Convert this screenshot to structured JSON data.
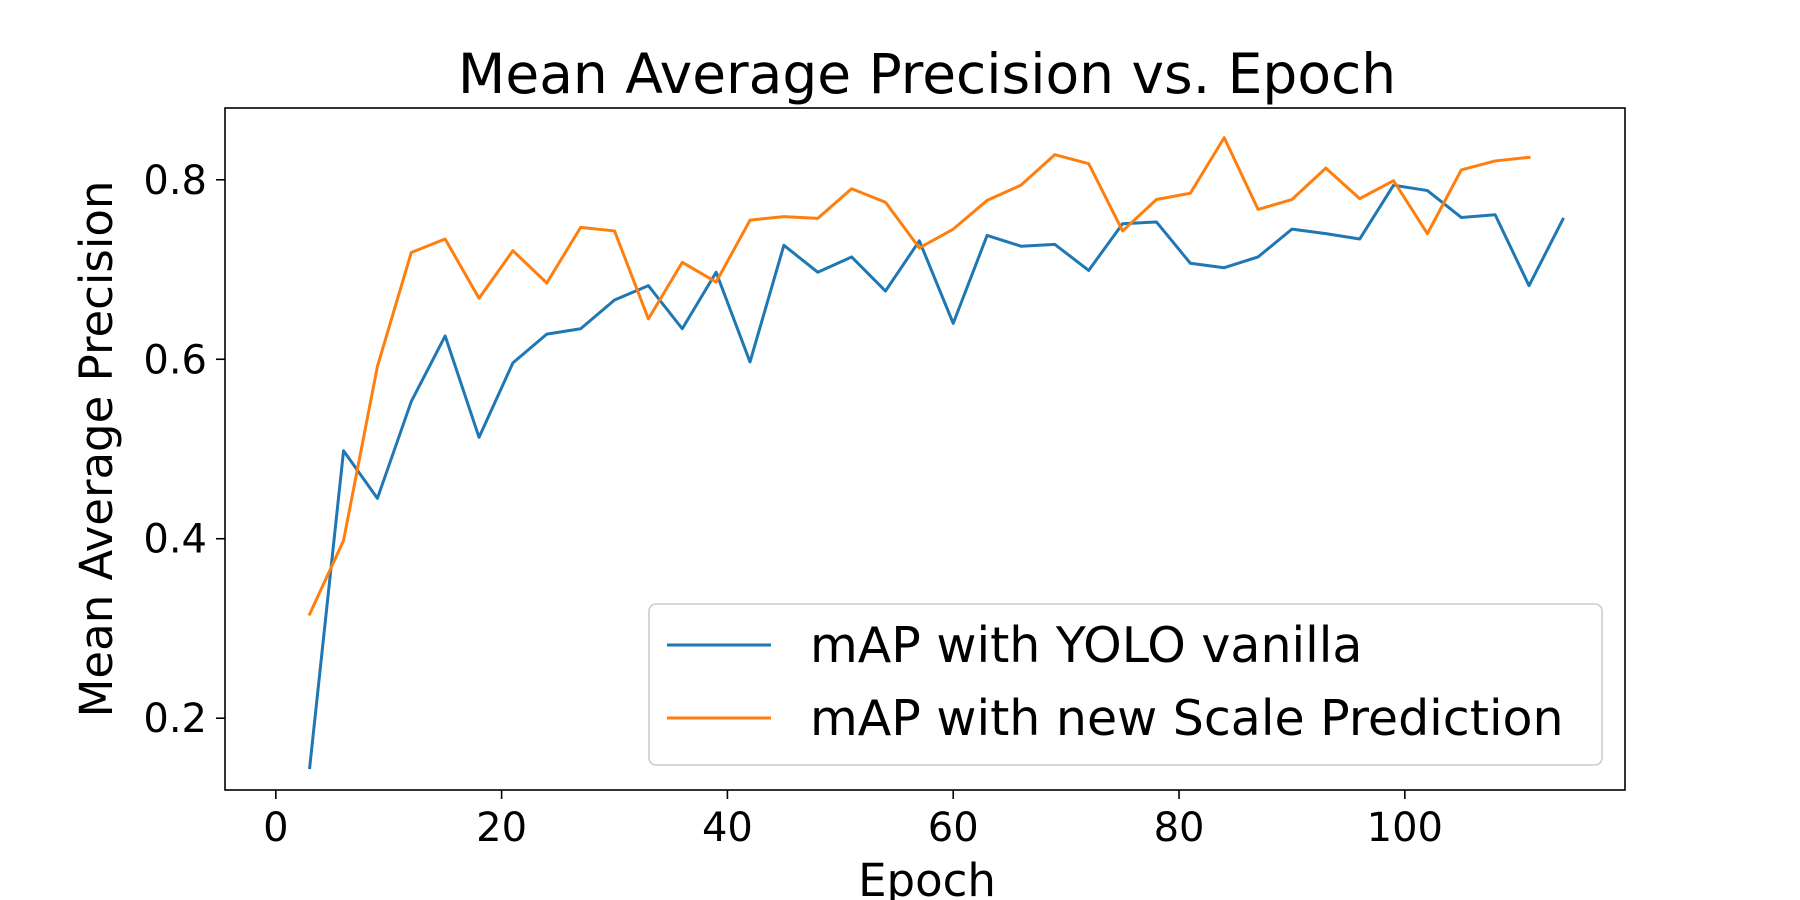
{
  "chart_data": {
    "type": "line",
    "title": "Mean Average Precision vs. Epoch",
    "xlabel": "Epoch",
    "ylabel": "Mean Average Precision",
    "xlim": [
      -4.5,
      119.5
    ],
    "ylim": [
      0.12,
      0.88
    ],
    "xticks": [
      0,
      20,
      40,
      60,
      80,
      100
    ],
    "yticks": [
      0.2,
      0.4,
      0.6,
      0.8
    ],
    "xtick_labels": [
      "0",
      "20",
      "40",
      "60",
      "80",
      "100"
    ],
    "ytick_labels": [
      "0.2",
      "0.4",
      "0.6",
      "0.8"
    ],
    "grid": false,
    "legend_position": "lower-right",
    "series": [
      {
        "name": "mAP with YOLO vanilla",
        "color": "#1f77b4",
        "x": [
          3,
          6,
          9,
          12,
          15,
          18,
          21,
          24,
          27,
          30,
          33,
          36,
          39,
          42,
          45,
          48,
          51,
          54,
          57,
          60,
          63,
          66,
          69,
          72,
          75,
          78,
          81,
          84,
          87,
          90,
          93,
          96,
          99,
          102,
          105,
          108,
          111,
          114
        ],
        "values": [
          0.145,
          0.498,
          0.445,
          0.553,
          0.626,
          0.513,
          0.596,
          0.628,
          0.634,
          0.666,
          0.682,
          0.634,
          0.697,
          0.597,
          0.727,
          0.697,
          0.714,
          0.676,
          0.732,
          0.64,
          0.738,
          0.726,
          0.728,
          0.699,
          0.751,
          0.753,
          0.707,
          0.702,
          0.714,
          0.745,
          0.74,
          0.734,
          0.794,
          0.788,
          0.758,
          0.761,
          0.682,
          0.756
        ]
      },
      {
        "name": "mAP with new Scale Prediction",
        "color": "#ff7f0e",
        "x": [
          3,
          6,
          9,
          12,
          15,
          18,
          21,
          24,
          27,
          30,
          33,
          36,
          39,
          42,
          45,
          48,
          51,
          54,
          57,
          60,
          63,
          66,
          69,
          72,
          75,
          78,
          81,
          84,
          87,
          90,
          93,
          96,
          99,
          102,
          105,
          108,
          111
        ],
        "values": [
          0.316,
          0.398,
          0.592,
          0.719,
          0.734,
          0.668,
          0.721,
          0.685,
          0.747,
          0.743,
          0.645,
          0.708,
          0.686,
          0.755,
          0.759,
          0.757,
          0.79,
          0.775,
          0.724,
          0.745,
          0.777,
          0.794,
          0.828,
          0.818,
          0.743,
          0.778,
          0.785,
          0.847,
          0.767,
          0.778,
          0.813,
          0.779,
          0.799,
          0.74,
          0.811,
          0.821,
          0.825
        ]
      }
    ]
  }
}
